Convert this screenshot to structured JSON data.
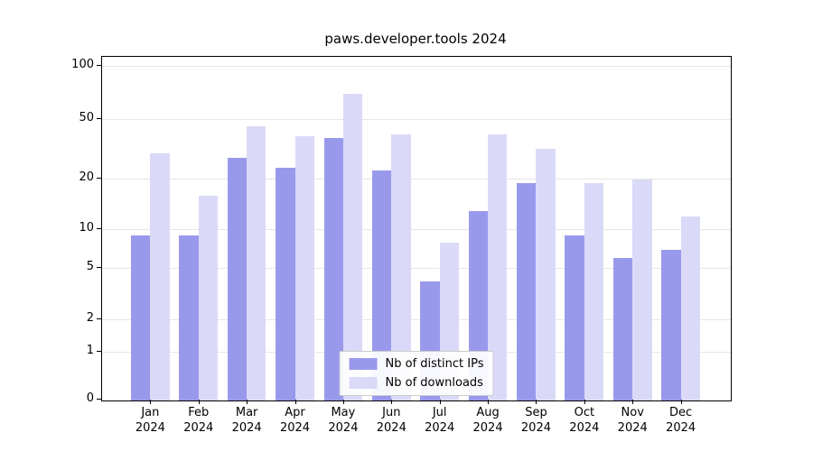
{
  "chart_data": {
    "type": "bar",
    "title": "paws.developer.tools 2024",
    "categories": [
      "Jan",
      "Feb",
      "Mar",
      "Apr",
      "May",
      "Jun",
      "Jul",
      "Aug",
      "Sep",
      "Oct",
      "Nov",
      "Dec"
    ],
    "xtick_year": "2024",
    "series": [
      {
        "name": "Nb of distinct IPs",
        "color": "#9999ec",
        "values": [
          9,
          9,
          28,
          24,
          38,
          23,
          4,
          13,
          19,
          9,
          6,
          7
        ]
      },
      {
        "name": "Nb of downloads",
        "color": "#dadaf8",
        "values": [
          30,
          16,
          45,
          39,
          70,
          40,
          8,
          40,
          32,
          19,
          20,
          12
        ]
      }
    ],
    "yscale": "symlog",
    "yticks": [
      0,
      1,
      2,
      5,
      10,
      20,
      50,
      100
    ],
    "ylim": [
      0,
      110
    ],
    "grid": true,
    "legend_position": "lower center"
  }
}
